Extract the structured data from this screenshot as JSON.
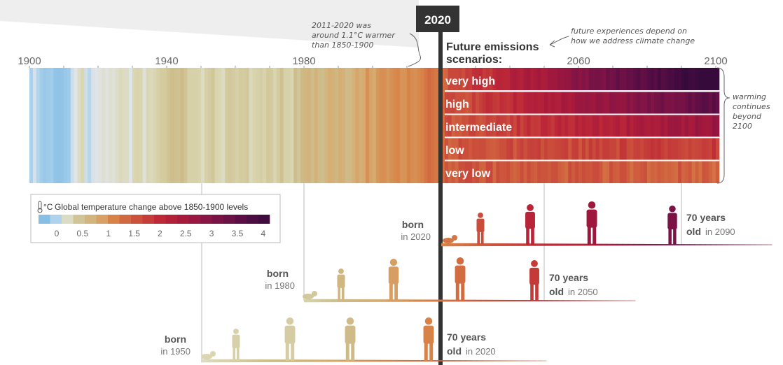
{
  "chart_data": {
    "type": "heatmap",
    "title": "",
    "x_ticks": [
      "1900",
      "1940",
      "1980",
      "2060",
      "2100"
    ],
    "now_year": "2020",
    "annotation_left": [
      "2011-2020 was",
      "around 1.1°C warmer",
      "than 1850-1900"
    ],
    "annotation_top": [
      "future experiences depend on",
      "how we address climate change"
    ],
    "future_title": [
      "Future emissions",
      "scenarios:"
    ],
    "annotation_right": [
      "warming",
      "continues",
      "beyond",
      "2100"
    ],
    "scenarios": [
      {
        "name": "very high",
        "temp_2021": 1.5,
        "temp_2100": 4.4
      },
      {
        "name": "high",
        "temp_2021": 1.5,
        "temp_2100": 3.6
      },
      {
        "name": "intermediate",
        "temp_2021": 1.5,
        "temp_2100": 2.7
      },
      {
        "name": "low",
        "temp_2021": 1.5,
        "temp_2100": 1.8
      },
      {
        "name": "very low",
        "temp_2021": 1.5,
        "temp_2100": 1.4
      }
    ],
    "historical_anomalies": {
      "start_year": 1900,
      "end_year": 2020,
      "values": [
        -0.05,
        0.08,
        -0.02,
        -0.08,
        -0.12,
        -0.1,
        -0.08,
        -0.15,
        -0.16,
        -0.15,
        -0.12,
        -0.1,
        0.05,
        0.1,
        0.2,
        0.25,
        0.05,
        0.0,
        0.08,
        0.1,
        0.12,
        0.16,
        0.12,
        0.16,
        0.14,
        0.18,
        0.22,
        0.2,
        0.2,
        0.1,
        0.25,
        0.28,
        0.26,
        0.14,
        0.25,
        0.22,
        0.25,
        0.32,
        0.36,
        0.38,
        0.45,
        0.5,
        0.48,
        0.46,
        0.55,
        0.45,
        0.3,
        0.3,
        0.3,
        0.28,
        0.2,
        0.32,
        0.36,
        0.42,
        0.26,
        0.24,
        0.2,
        0.38,
        0.4,
        0.36,
        0.32,
        0.38,
        0.36,
        0.4,
        0.22,
        0.28,
        0.3,
        0.34,
        0.28,
        0.4,
        0.38,
        0.26,
        0.36,
        0.48,
        0.3,
        0.3,
        0.26,
        0.5,
        0.42,
        0.56,
        0.6,
        0.66,
        0.52,
        0.7,
        0.54,
        0.5,
        0.62,
        0.76,
        0.68,
        0.62,
        0.76,
        0.7,
        0.54,
        0.58,
        0.7,
        0.84,
        0.72,
        0.8,
        1.0,
        0.84,
        0.8,
        0.94,
        1.0,
        1.0,
        0.92,
        1.0,
        1.04,
        1.08,
        0.96,
        0.98,
        1.1,
        1.02,
        1.0,
        1.05,
        1.1,
        1.22,
        1.32,
        1.24,
        1.18,
        1.26,
        1.3
      ]
    },
    "legend": {
      "title": "Global temperature change above 1850-1900 levels",
      "unit": "°C",
      "ticks": [
        "0",
        "0.5",
        "1",
        "1.5",
        "2",
        "2.5",
        "3",
        "3.5",
        "4"
      ]
    },
    "generations": [
      {
        "born_label": "born",
        "born_year": "in 2020",
        "seventy_label": "70 years",
        "old_label": "old",
        "old_year": "in 2090"
      },
      {
        "born_label": "born",
        "born_year": "in 1980",
        "seventy_label": "70 years",
        "old_label": "old",
        "old_year": "in 2050"
      },
      {
        "born_label": "born",
        "born_year": "in 1950",
        "seventy_label": "70 years",
        "old_label": "old",
        "old_year": "in 2020"
      }
    ]
  }
}
